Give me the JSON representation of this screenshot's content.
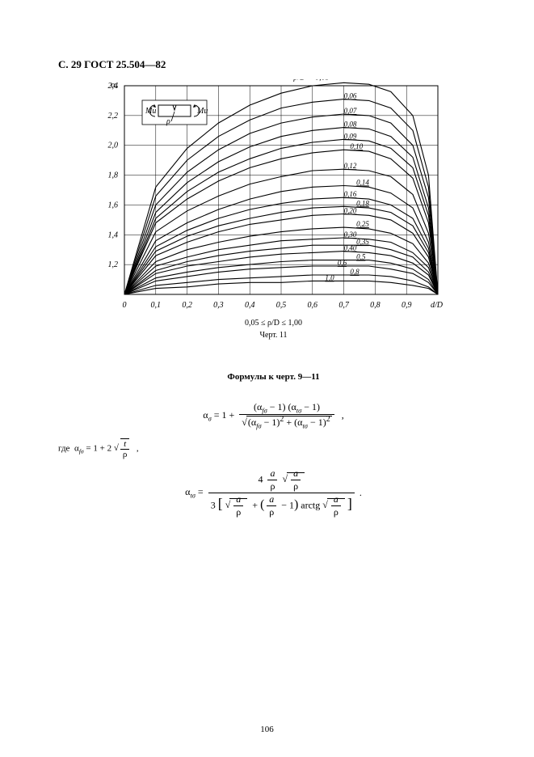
{
  "header": "С. 29 ГОСТ 25.504—82",
  "page_number": "106",
  "chart": {
    "type": "line",
    "y_axis_label": "αₒ",
    "x_axis_label": "d/D",
    "xlim": [
      0,
      1.0
    ],
    "ylim": [
      1.0,
      2.4
    ],
    "x_ticks": [
      "0",
      "0,1",
      "0,2",
      "0,3",
      "0,4",
      "0,5",
      "0,6",
      "0,7",
      "0,8",
      "0,9"
    ],
    "y_ticks": [
      "1,2",
      "1,4",
      "1,6",
      "1,8",
      "2,0",
      "2,2",
      "2,4"
    ],
    "grid_color": "#000000",
    "curve_color": "#000000",
    "background_color": "#ffffff",
    "inset_labels": {
      "left": "Mи",
      "right": "Mи",
      "rho": "ρ"
    },
    "top_label": "ρ/D = 0,05",
    "curve_labels": [
      "0,06",
      "0,07",
      "0,08",
      "0,09",
      "0,10",
      "0,12",
      "0,14",
      "0,16",
      "0,18",
      "0,20",
      "0,25",
      "0,30",
      "0,35",
      "0,40",
      "0,5",
      "0,6",
      "0,8",
      "1,0"
    ],
    "curves": [
      [
        [
          0,
          1.0
        ],
        [
          0.1,
          1.72
        ],
        [
          0.2,
          1.98
        ],
        [
          0.3,
          2.15
        ],
        [
          0.4,
          2.27
        ],
        [
          0.5,
          2.35
        ],
        [
          0.6,
          2.4
        ],
        [
          0.7,
          2.42
        ],
        [
          0.78,
          2.41
        ],
        [
          0.85,
          2.36
        ],
        [
          0.92,
          2.2
        ],
        [
          0.97,
          1.8
        ],
        [
          1.0,
          1.0
        ]
      ],
      [
        [
          0,
          1.0
        ],
        [
          0.1,
          1.66
        ],
        [
          0.2,
          1.9
        ],
        [
          0.3,
          2.06
        ],
        [
          0.4,
          2.17
        ],
        [
          0.5,
          2.25
        ],
        [
          0.6,
          2.29
        ],
        [
          0.7,
          2.31
        ],
        [
          0.78,
          2.3
        ],
        [
          0.85,
          2.25
        ],
        [
          0.92,
          2.1
        ],
        [
          0.97,
          1.72
        ],
        [
          1.0,
          1.0
        ]
      ],
      [
        [
          0,
          1.0
        ],
        [
          0.1,
          1.6
        ],
        [
          0.2,
          1.82
        ],
        [
          0.3,
          1.97
        ],
        [
          0.4,
          2.08
        ],
        [
          0.5,
          2.15
        ],
        [
          0.6,
          2.19
        ],
        [
          0.7,
          2.21
        ],
        [
          0.78,
          2.2
        ],
        [
          0.85,
          2.15
        ],
        [
          0.92,
          2.0
        ],
        [
          0.97,
          1.65
        ],
        [
          1.0,
          1.0
        ]
      ],
      [
        [
          0,
          1.0
        ],
        [
          0.1,
          1.55
        ],
        [
          0.2,
          1.75
        ],
        [
          0.3,
          1.89
        ],
        [
          0.4,
          1.99
        ],
        [
          0.5,
          2.06
        ],
        [
          0.6,
          2.1
        ],
        [
          0.7,
          2.12
        ],
        [
          0.78,
          2.11
        ],
        [
          0.85,
          2.06
        ],
        [
          0.92,
          1.92
        ],
        [
          0.97,
          1.58
        ],
        [
          1.0,
          1.0
        ]
      ],
      [
        [
          0,
          1.0
        ],
        [
          0.1,
          1.51
        ],
        [
          0.2,
          1.69
        ],
        [
          0.3,
          1.82
        ],
        [
          0.4,
          1.91
        ],
        [
          0.5,
          1.98
        ],
        [
          0.6,
          2.02
        ],
        [
          0.7,
          2.04
        ],
        [
          0.78,
          2.03
        ],
        [
          0.85,
          1.98
        ],
        [
          0.92,
          1.85
        ],
        [
          0.97,
          1.53
        ],
        [
          1.0,
          1.0
        ]
      ],
      [
        [
          0,
          1.0
        ],
        [
          0.1,
          1.48
        ],
        [
          0.2,
          1.64
        ],
        [
          0.3,
          1.76
        ],
        [
          0.4,
          1.85
        ],
        [
          0.5,
          1.91
        ],
        [
          0.6,
          1.95
        ],
        [
          0.7,
          1.97
        ],
        [
          0.78,
          1.96
        ],
        [
          0.85,
          1.91
        ],
        [
          0.92,
          1.78
        ],
        [
          0.97,
          1.48
        ],
        [
          1.0,
          1.0
        ]
      ],
      [
        [
          0,
          1.0
        ],
        [
          0.1,
          1.42
        ],
        [
          0.2,
          1.56
        ],
        [
          0.3,
          1.66
        ],
        [
          0.4,
          1.74
        ],
        [
          0.5,
          1.79
        ],
        [
          0.6,
          1.83
        ],
        [
          0.7,
          1.84
        ],
        [
          0.78,
          1.83
        ],
        [
          0.85,
          1.79
        ],
        [
          0.92,
          1.67
        ],
        [
          0.97,
          1.41
        ],
        [
          1.0,
          1.0
        ]
      ],
      [
        [
          0,
          1.0
        ],
        [
          0.1,
          1.36
        ],
        [
          0.2,
          1.48
        ],
        [
          0.3,
          1.57
        ],
        [
          0.4,
          1.64
        ],
        [
          0.5,
          1.69
        ],
        [
          0.6,
          1.72
        ],
        [
          0.7,
          1.73
        ],
        [
          0.78,
          1.72
        ],
        [
          0.85,
          1.68
        ],
        [
          0.92,
          1.58
        ],
        [
          0.97,
          1.35
        ],
        [
          1.0,
          1.0
        ]
      ],
      [
        [
          0,
          1.0
        ],
        [
          0.1,
          1.32
        ],
        [
          0.2,
          1.43
        ],
        [
          0.3,
          1.51
        ],
        [
          0.4,
          1.57
        ],
        [
          0.5,
          1.61
        ],
        [
          0.6,
          1.64
        ],
        [
          0.7,
          1.65
        ],
        [
          0.78,
          1.64
        ],
        [
          0.85,
          1.6
        ],
        [
          0.92,
          1.51
        ],
        [
          0.97,
          1.31
        ],
        [
          1.0,
          1.0
        ]
      ],
      [
        [
          0,
          1.0
        ],
        [
          0.1,
          1.29
        ],
        [
          0.2,
          1.39
        ],
        [
          0.3,
          1.46
        ],
        [
          0.4,
          1.51
        ],
        [
          0.5,
          1.55
        ],
        [
          0.6,
          1.58
        ],
        [
          0.7,
          1.59
        ],
        [
          0.78,
          1.58
        ],
        [
          0.85,
          1.55
        ],
        [
          0.92,
          1.46
        ],
        [
          0.97,
          1.28
        ],
        [
          1.0,
          1.0
        ]
      ],
      [
        [
          0,
          1.0
        ],
        [
          0.1,
          1.26
        ],
        [
          0.2,
          1.35
        ],
        [
          0.3,
          1.42
        ],
        [
          0.4,
          1.47
        ],
        [
          0.5,
          1.5
        ],
        [
          0.6,
          1.53
        ],
        [
          0.7,
          1.54
        ],
        [
          0.78,
          1.53
        ],
        [
          0.85,
          1.5
        ],
        [
          0.92,
          1.41
        ],
        [
          0.97,
          1.25
        ],
        [
          1.0,
          1.0
        ]
      ],
      [
        [
          0,
          1.0
        ],
        [
          0.1,
          1.22
        ],
        [
          0.2,
          1.3
        ],
        [
          0.3,
          1.35
        ],
        [
          0.4,
          1.39
        ],
        [
          0.5,
          1.42
        ],
        [
          0.6,
          1.44
        ],
        [
          0.7,
          1.45
        ],
        [
          0.78,
          1.44
        ],
        [
          0.85,
          1.41
        ],
        [
          0.92,
          1.34
        ],
        [
          0.97,
          1.21
        ],
        [
          1.0,
          1.0
        ]
      ],
      [
        [
          0,
          1.0
        ],
        [
          0.1,
          1.19
        ],
        [
          0.2,
          1.25
        ],
        [
          0.3,
          1.3
        ],
        [
          0.4,
          1.33
        ],
        [
          0.5,
          1.36
        ],
        [
          0.6,
          1.37
        ],
        [
          0.7,
          1.38
        ],
        [
          0.78,
          1.37
        ],
        [
          0.85,
          1.35
        ],
        [
          0.92,
          1.28
        ],
        [
          0.97,
          1.18
        ],
        [
          1.0,
          1.0
        ]
      ],
      [
        [
          0,
          1.0
        ],
        [
          0.1,
          1.16
        ],
        [
          0.2,
          1.22
        ],
        [
          0.3,
          1.26
        ],
        [
          0.4,
          1.29
        ],
        [
          0.5,
          1.31
        ],
        [
          0.6,
          1.33
        ],
        [
          0.7,
          1.33
        ],
        [
          0.78,
          1.33
        ],
        [
          0.85,
          1.3
        ],
        [
          0.92,
          1.25
        ],
        [
          0.97,
          1.15
        ],
        [
          1.0,
          1.0
        ]
      ],
      [
        [
          0,
          1.0
        ],
        [
          0.1,
          1.14
        ],
        [
          0.2,
          1.19
        ],
        [
          0.3,
          1.22
        ],
        [
          0.4,
          1.25
        ],
        [
          0.5,
          1.27
        ],
        [
          0.6,
          1.28
        ],
        [
          0.7,
          1.29
        ],
        [
          0.78,
          1.28
        ],
        [
          0.85,
          1.26
        ],
        [
          0.92,
          1.21
        ],
        [
          0.97,
          1.13
        ],
        [
          1.0,
          1.0
        ]
      ],
      [
        [
          0,
          1.0
        ],
        [
          0.1,
          1.11
        ],
        [
          0.2,
          1.15
        ],
        [
          0.3,
          1.18
        ],
        [
          0.4,
          1.2
        ],
        [
          0.5,
          1.22
        ],
        [
          0.6,
          1.23
        ],
        [
          0.7,
          1.23
        ],
        [
          0.78,
          1.23
        ],
        [
          0.85,
          1.21
        ],
        [
          0.92,
          1.17
        ],
        [
          0.97,
          1.1
        ],
        [
          1.0,
          1.0
        ]
      ],
      [
        [
          0,
          1.0
        ],
        [
          0.1,
          1.09
        ],
        [
          0.2,
          1.12
        ],
        [
          0.3,
          1.15
        ],
        [
          0.4,
          1.17
        ],
        [
          0.5,
          1.18
        ],
        [
          0.6,
          1.19
        ],
        [
          0.7,
          1.19
        ],
        [
          0.78,
          1.19
        ],
        [
          0.85,
          1.17
        ],
        [
          0.92,
          1.14
        ],
        [
          0.97,
          1.08
        ],
        [
          1.0,
          1.0
        ]
      ],
      [
        [
          0,
          1.0
        ],
        [
          0.1,
          1.06
        ],
        [
          0.2,
          1.08
        ],
        [
          0.3,
          1.1
        ],
        [
          0.4,
          1.11
        ],
        [
          0.5,
          1.12
        ],
        [
          0.6,
          1.13
        ],
        [
          0.7,
          1.13
        ],
        [
          0.78,
          1.13
        ],
        [
          0.85,
          1.12
        ],
        [
          0.92,
          1.09
        ],
        [
          0.97,
          1.05
        ],
        [
          1.0,
          1.0
        ]
      ],
      [
        [
          0,
          1.0
        ],
        [
          0.1,
          1.04
        ],
        [
          0.2,
          1.05
        ],
        [
          0.3,
          1.07
        ],
        [
          0.4,
          1.08
        ],
        [
          0.5,
          1.08
        ],
        [
          0.6,
          1.09
        ],
        [
          0.7,
          1.09
        ],
        [
          0.78,
          1.09
        ],
        [
          0.85,
          1.08
        ],
        [
          0.92,
          1.06
        ],
        [
          0.97,
          1.04
        ],
        [
          1.0,
          1.0
        ]
      ]
    ]
  },
  "caption_range": "0,05 ≤ ρ/D ≤ 1,00",
  "caption": "Черт. 11",
  "formulas_title": "Формулы к черт. 9—11",
  "formula1": {
    "lhs": "αₒ = 1 + ",
    "num": "(α_{fσ} − 1) (α_{tσ} − 1)",
    "den": "√((α_{fσ} − 1)² + (α_{tσ} − 1)²)",
    "tail": " ,"
  },
  "where_line": "где  α_{fσ} = 1 + 2 √(t/ρ) ,",
  "formula2": {
    "lhs": "α_{tσ} = ",
    "num": "4 (a/ρ) √(a/ρ)",
    "den": "3 [ √(a/ρ) + (a/ρ − 1) arctg √(a/ρ) ]",
    "tail": " ."
  }
}
